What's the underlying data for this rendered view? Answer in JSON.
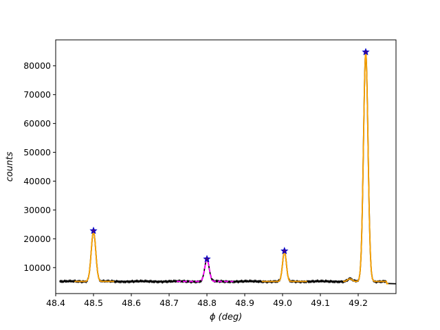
{
  "chart_data": {
    "type": "line",
    "title": "",
    "xlabel": "ϕ (deg)",
    "ylabel": "counts",
    "xlim": [
      48.4,
      49.3
    ],
    "ylim": [
      1000,
      89000
    ],
    "xticks": [
      48.4,
      48.5,
      48.6,
      48.7,
      48.8,
      48.9,
      49.0,
      49.1,
      49.2
    ],
    "xtick_labels": [
      "48.4",
      "48.5",
      "48.6",
      "48.7",
      "48.8",
      "48.9",
      "49.0",
      "49.1",
      "49.2"
    ],
    "yticks": [
      10000,
      20000,
      30000,
      40000,
      50000,
      60000,
      70000,
      80000
    ],
    "ytick_labels": [
      "10000",
      "20000",
      "30000",
      "40000",
      "50000",
      "60000",
      "70000",
      "80000"
    ],
    "grid": false,
    "baseline": 5200,
    "series": [
      {
        "role": "data",
        "color": "#000000",
        "x_range": [
          48.41,
          49.3
        ],
        "peaks": [
          {
            "center": 48.5,
            "height": 22500,
            "width": 0.006
          },
          {
            "center": 48.8,
            "height": 12800,
            "width": 0.006
          },
          {
            "center": 49.005,
            "height": 15600,
            "width": 0.005
          },
          {
            "center": 49.22,
            "height": 84500,
            "width": 0.006
          },
          {
            "center": 49.178,
            "height": 6100,
            "width": 0.006
          }
        ]
      },
      {
        "role": "fit",
        "color": "#ffa500",
        "segments": [
          [
            48.45,
            48.555
          ],
          [
            48.945,
            49.065
          ],
          [
            49.16,
            49.28
          ]
        ]
      },
      {
        "role": "fit",
        "color": "#ff00ff",
        "segments": [
          [
            48.72,
            48.87
          ]
        ]
      }
    ],
    "peak_markers": [
      {
        "x": 48.5,
        "y": 22800
      },
      {
        "x": 48.8,
        "y": 13000
      },
      {
        "x": 49.005,
        "y": 15800
      },
      {
        "x": 49.22,
        "y": 84800
      }
    ],
    "colors": {
      "data": "#000000",
      "fit_primary": "#ffa500",
      "fit_secondary": "#ff00ff",
      "marker_edge": "#0000cc",
      "marker_fill": "#4b0082"
    }
  }
}
